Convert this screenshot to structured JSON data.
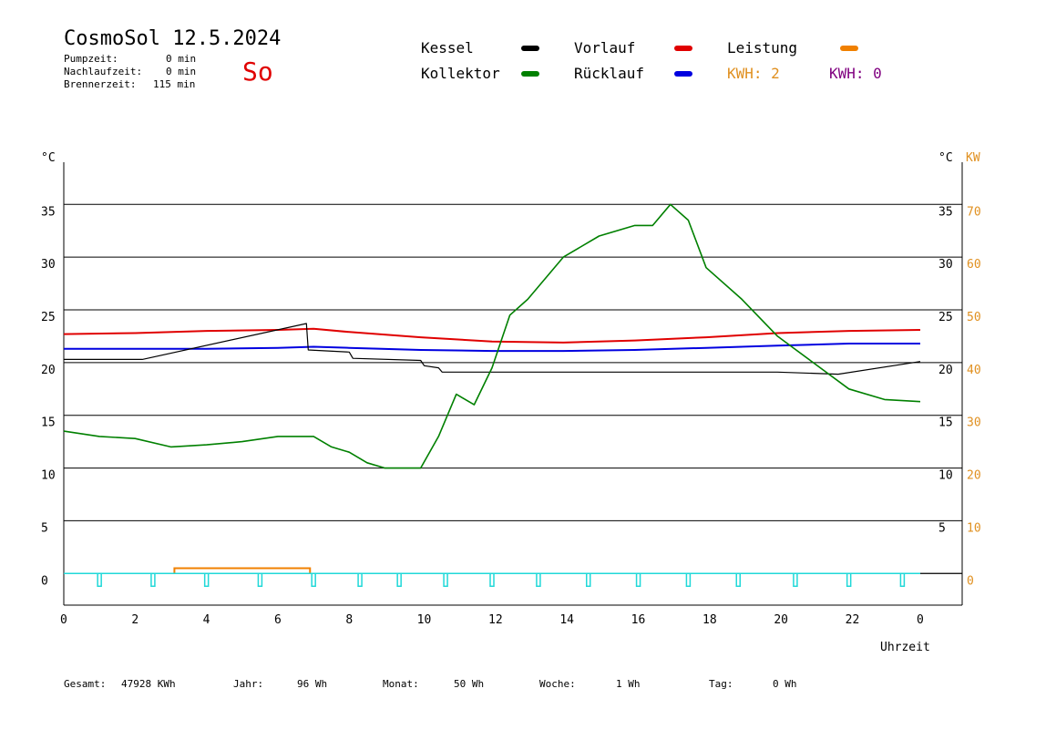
{
  "header": {
    "title": "CosmoSol 12.5.2024",
    "day": "So",
    "stats": [
      {
        "label": "Pumpzeit:",
        "value": "0 min"
      },
      {
        "label": "Nachlaufzeit:",
        "value": "0 min"
      },
      {
        "label": "Brennerzeit:",
        "value": "115 min"
      }
    ]
  },
  "legend": {
    "kessel": {
      "label": "Kessel",
      "color": "#000000"
    },
    "vorlauf": {
      "label": "Vorlauf",
      "color": "#e00000"
    },
    "leistung": {
      "label": "Leistung",
      "color": "#f08000"
    },
    "kollektor": {
      "label": "Kollektor",
      "color": "#008000"
    },
    "ruecklauf": {
      "label": "Rücklauf",
      "color": "#0000e0"
    },
    "kwh1": "KWH: 2",
    "kwh1_color": "#e09020",
    "kwh2": "KWH: 0",
    "kwh2_color": "#800080"
  },
  "footer": [
    {
      "label": "Gesamt:",
      "value": "47928 KWh"
    },
    {
      "label": "Jahr:",
      "value": "96 Wh"
    },
    {
      "label": "Monat:",
      "value": "50 Wh"
    },
    {
      "label": "Woche:",
      "value": "1 Wh"
    },
    {
      "label": "Tag:",
      "value": "0 Wh"
    }
  ],
  "chart_data": {
    "type": "line",
    "xlabel": "Uhrzeit",
    "ylabel_left": "°C",
    "ylabel_right": "°C",
    "ylabel_right2": "KW",
    "xlim": [
      0,
      24
    ],
    "ylim": [
      -3,
      39
    ],
    "x_ticks": [
      "0",
      "2",
      "4",
      "6",
      "8",
      "10",
      "12",
      "14",
      "16",
      "18",
      "20",
      "22",
      "0"
    ],
    "y_ticks": [
      0,
      5,
      10,
      15,
      20,
      25,
      30,
      35
    ],
    "y_ticks_right": [
      "",
      "5",
      "10",
      "15",
      "20",
      "25",
      "30",
      "35"
    ],
    "kw_ticks": [
      "0",
      "10",
      "20",
      "30",
      "40",
      "50",
      "60",
      "70"
    ],
    "grid": "horizontal",
    "series": [
      {
        "name": "Vorlauf",
        "color": "#e00000",
        "x": [
          0,
          2,
          4,
          6,
          7,
          8,
          10,
          12,
          14,
          16,
          18,
          20,
          22,
          24
        ],
        "y": [
          22.7,
          22.8,
          23,
          23.1,
          23.2,
          22.9,
          22.4,
          22,
          21.9,
          22.1,
          22.4,
          22.8,
          23.0,
          23.1
        ]
      },
      {
        "name": "Rücklauf",
        "color": "#0000e0",
        "x": [
          0,
          2,
          4,
          6,
          7,
          8,
          10,
          12,
          14,
          16,
          18,
          20,
          22,
          24
        ],
        "y": [
          21.3,
          21.3,
          21.3,
          21.4,
          21.5,
          21.4,
          21.2,
          21.1,
          21.1,
          21.2,
          21.4,
          21.6,
          21.8,
          21.8
        ]
      },
      {
        "name": "Kessel",
        "color": "#000000",
        "x": [
          0,
          2.2,
          6.8,
          6.85,
          8.0,
          8.1,
          10.0,
          10.1,
          10.5,
          10.6,
          12.0,
          20.0,
          21.7,
          24
        ],
        "y": [
          20.3,
          20.3,
          23.7,
          21.2,
          21.0,
          20.4,
          20.2,
          19.7,
          19.5,
          19.1,
          19.1,
          19.1,
          18.9,
          20.1
        ]
      },
      {
        "name": "Kollektor",
        "color": "#008000",
        "x": [
          0,
          1,
          2,
          3,
          4,
          5,
          6,
          7,
          7.5,
          8,
          8.5,
          9,
          9.5,
          10,
          10.5,
          11,
          11.5,
          12,
          12.5,
          13,
          14,
          15,
          16,
          16.5,
          17,
          17.5,
          18,
          19,
          20,
          21,
          22,
          23,
          24
        ],
        "y": [
          13.5,
          13,
          12.8,
          12,
          12.2,
          12.5,
          13,
          13,
          12,
          11.5,
          10.5,
          10,
          10,
          10,
          13,
          17,
          16,
          19.5,
          24.5,
          26,
          30,
          32,
          33,
          33,
          35,
          33.5,
          29,
          26,
          22.5,
          20,
          17.5,
          16.5,
          16.3
        ]
      },
      {
        "name": "Leistung",
        "color": "#f08000",
        "x": [
          3.1,
          6.9
        ],
        "y": [
          0.5,
          0.5
        ]
      },
      {
        "name": "Pumpe",
        "color": "#20d8d8",
        "x": [
          0,
          24
        ],
        "y": [
          0,
          0
        ]
      }
    ],
    "pump_pulses": [
      1.0,
      2.5,
      4.0,
      5.5,
      7.0,
      8.3,
      9.4,
      10.7,
      12.0,
      13.3,
      14.7,
      16.1,
      17.5,
      18.9,
      20.5,
      22.0,
      23.5
    ]
  }
}
